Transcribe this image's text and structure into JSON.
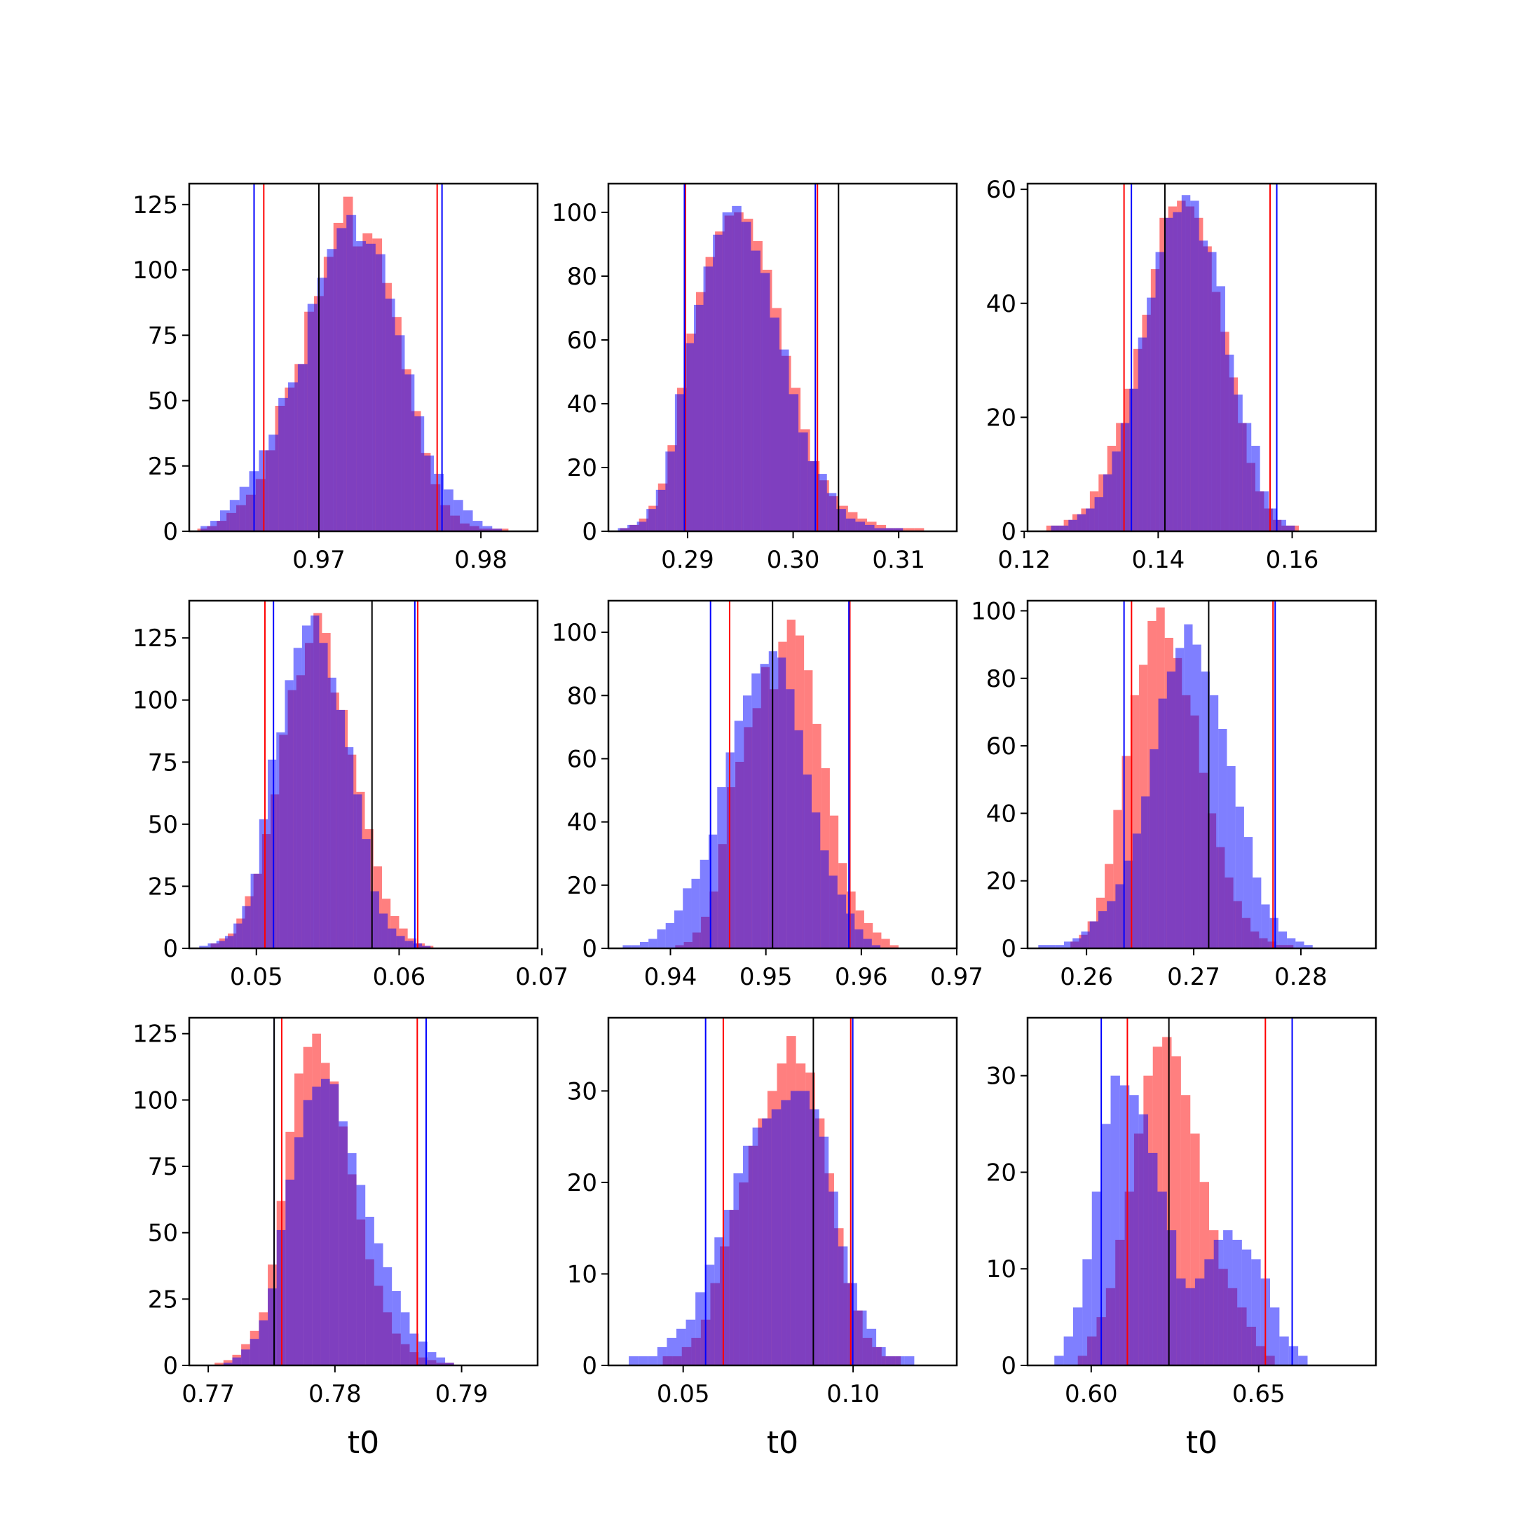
{
  "colors": {
    "red_series": "#ff0000",
    "blue_series": "#0000ff",
    "marker_line": "#000000",
    "overlap_tint": "#7a3cc4"
  },
  "chart_data": [
    {
      "type": "histogram",
      "grid": false,
      "xlim": [
        0.962,
        0.9835
      ],
      "ylim": [
        0,
        133
      ],
      "xticks": [
        {
          "v": 0.97,
          "label": "0.97"
        },
        {
          "v": 0.98,
          "label": "0.98"
        }
      ],
      "yticks": [
        {
          "v": 0,
          "label": "0"
        },
        {
          "v": 25,
          "label": "25"
        },
        {
          "v": 50,
          "label": "50"
        },
        {
          "v": 75,
          "label": "75"
        },
        {
          "v": 100,
          "label": "100"
        },
        {
          "v": 125,
          "label": "125"
        }
      ],
      "xlabel": "",
      "red": {
        "start": 0.9625,
        "width": 0.0006,
        "counts": [
          1,
          2,
          4,
          7,
          10,
          14,
          20,
          31,
          48,
          55,
          64,
          84,
          90,
          105,
          118,
          128,
          109,
          114,
          112,
          95,
          82,
          62,
          46,
          30,
          18,
          10,
          6,
          3,
          2,
          1,
          1,
          1
        ],
        "lines": [
          0.9666,
          0.9773
        ]
      },
      "blue": {
        "start": 0.9627,
        "width": 0.0006,
        "counts": [
          2,
          4,
          8,
          12,
          17,
          23,
          31,
          37,
          51,
          57,
          64,
          87,
          97,
          108,
          116,
          121,
          111,
          110,
          106,
          89,
          75,
          60,
          44,
          29,
          22,
          16,
          12,
          8,
          4,
          2,
          1
        ],
        "lines": [
          0.966,
          0.9776
        ]
      },
      "black_lines": [
        0.97
      ]
    },
    {
      "type": "histogram",
      "grid": false,
      "xlim": [
        0.2825,
        0.3155
      ],
      "ylim": [
        0,
        109
      ],
      "xticks": [
        {
          "v": 0.29,
          "label": "0.29"
        },
        {
          "v": 0.3,
          "label": "0.30"
        },
        {
          "v": 0.31,
          "label": "0.31"
        }
      ],
      "yticks": [
        {
          "v": 0,
          "label": "0"
        },
        {
          "v": 20,
          "label": "20"
        },
        {
          "v": 40,
          "label": "40"
        },
        {
          "v": 60,
          "label": "60"
        },
        {
          "v": 80,
          "label": "80"
        },
        {
          "v": 100,
          "label": "100"
        }
      ],
      "xlabel": "",
      "red": {
        "start": 0.2836,
        "width": 0.0009,
        "counts": [
          1,
          2,
          4,
          8,
          15,
          27,
          45,
          62,
          75,
          86,
          94,
          99,
          100,
          98,
          91,
          82,
          70,
          55,
          45,
          32,
          22,
          16,
          11,
          8,
          6,
          4,
          3,
          2,
          1,
          1,
          1,
          1
        ],
        "lines": [
          0.2898,
          0.3023
        ]
      },
      "blue": {
        "start": 0.2834,
        "width": 0.0009,
        "counts": [
          1,
          2,
          3,
          7,
          13,
          25,
          43,
          59,
          71,
          83,
          93,
          100,
          102,
          97,
          88,
          81,
          67,
          57,
          43,
          31,
          22,
          18,
          12,
          7,
          4,
          3,
          2,
          1,
          1,
          1
        ],
        "lines": [
          0.2897,
          0.3021
        ]
      },
      "black_lines": [
        0.3043
      ]
    },
    {
      "type": "histogram",
      "grid": false,
      "xlim": [
        0.1205,
        0.1725
      ],
      "ylim": [
        0,
        61
      ],
      "xticks": [
        {
          "v": 0.12,
          "label": "0.12"
        },
        {
          "v": 0.14,
          "label": "0.14"
        },
        {
          "v": 0.16,
          "label": "0.16"
        }
      ],
      "yticks": [
        {
          "v": 0,
          "label": "0"
        },
        {
          "v": 20,
          "label": "20"
        },
        {
          "v": 40,
          "label": "40"
        },
        {
          "v": 60,
          "label": "60"
        }
      ],
      "xlabel": "",
      "red": {
        "start": 0.1233,
        "width": 0.0013,
        "counts": [
          1,
          1,
          2,
          3,
          4,
          7,
          10,
          15,
          19,
          25,
          32,
          38,
          46,
          55,
          57,
          58,
          57,
          55,
          50,
          42,
          35,
          27,
          19,
          12,
          7,
          4,
          2,
          1,
          1
        ],
        "lines": [
          0.1349,
          0.1567
        ]
      },
      "blue": {
        "start": 0.124,
        "width": 0.0013,
        "counts": [
          1,
          1,
          2,
          3,
          4,
          6,
          10,
          14,
          19,
          25,
          34,
          41,
          49,
          55,
          56,
          59,
          58,
          51,
          49,
          43,
          31,
          24,
          19,
          15,
          7,
          4,
          2,
          1
        ],
        "lines": [
          0.136,
          0.1577
        ]
      },
      "black_lines": [
        0.141
      ]
    },
    {
      "type": "histogram",
      "grid": false,
      "xlim": [
        0.0453,
        0.0697
      ],
      "ylim": [
        0,
        140
      ],
      "xticks": [
        {
          "v": 0.05,
          "label": "0.05"
        },
        {
          "v": 0.06,
          "label": "0.06"
        },
        {
          "v": 0.07,
          "label": "0.07"
        }
      ],
      "yticks": [
        {
          "v": 0,
          "label": "0"
        },
        {
          "v": 25,
          "label": "25"
        },
        {
          "v": 50,
          "label": "50"
        },
        {
          "v": 75,
          "label": "75"
        },
        {
          "v": 100,
          "label": "100"
        },
        {
          "v": 125,
          "label": "125"
        }
      ],
      "xlabel": "",
      "red": {
        "start": 0.0468,
        "width": 0.0006,
        "counts": [
          2,
          4,
          6,
          12,
          21,
          30,
          46,
          62,
          86,
          104,
          110,
          123,
          135,
          127,
          103,
          96,
          78,
          63,
          48,
          33,
          20,
          13,
          8,
          4,
          2,
          1
        ],
        "lines": [
          0.0506,
          0.0613
        ]
      },
      "blue": {
        "start": 0.046,
        "width": 0.0006,
        "counts": [
          1,
          2,
          3,
          5,
          10,
          17,
          30,
          52,
          76,
          87,
          108,
          121,
          130,
          134,
          123,
          109,
          96,
          81,
          62,
          44,
          23,
          14,
          8,
          5,
          3,
          2,
          1
        ],
        "lines": [
          0.0512,
          0.0611
        ]
      },
      "black_lines": [
        0.0581
      ]
    },
    {
      "type": "histogram",
      "grid": false,
      "xlim": [
        0.9335,
        0.97
      ],
      "ylim": [
        0,
        110
      ],
      "xticks": [
        {
          "v": 0.94,
          "label": "0.94"
        },
        {
          "v": 0.95,
          "label": "0.95"
        },
        {
          "v": 0.96,
          "label": "0.96"
        },
        {
          "v": 0.97,
          "label": "0.97"
        }
      ],
      "yticks": [
        {
          "v": 0,
          "label": "0"
        },
        {
          "v": 20,
          "label": "20"
        },
        {
          "v": 40,
          "label": "40"
        },
        {
          "v": 60,
          "label": "60"
        },
        {
          "v": 80,
          "label": "80"
        },
        {
          "v": 100,
          "label": "100"
        }
      ],
      "xlabel": "",
      "red": {
        "start": 0.9405,
        "width": 0.0009,
        "counts": [
          1,
          2,
          5,
          10,
          18,
          33,
          51,
          59,
          70,
          76,
          89,
          82,
          97,
          104,
          99,
          88,
          71,
          57,
          42,
          27,
          18,
          12,
          8,
          5,
          3,
          1
        ],
        "lines": [
          0.9462,
          0.9588
        ]
      },
      "blue": {
        "start": 0.935,
        "width": 0.0009,
        "counts": [
          1,
          1,
          2,
          3,
          6,
          8,
          12,
          19,
          22,
          28,
          36,
          51,
          62,
          72,
          80,
          87,
          90,
          94,
          92,
          82,
          69,
          55,
          43,
          31,
          23,
          17,
          11,
          6,
          3,
          1
        ],
        "lines": [
          0.9442,
          0.9587
        ]
      },
      "black_lines": [
        0.9507
      ]
    },
    {
      "type": "histogram",
      "grid": false,
      "xlim": [
        0.2545,
        0.287
      ],
      "ylim": [
        0,
        103
      ],
      "xticks": [
        {
          "v": 0.26,
          "label": "0.26"
        },
        {
          "v": 0.27,
          "label": "0.27"
        },
        {
          "v": 0.28,
          "label": "0.28"
        }
      ],
      "yticks": [
        {
          "v": 0,
          "label": "0"
        },
        {
          "v": 20,
          "label": "20"
        },
        {
          "v": 40,
          "label": "40"
        },
        {
          "v": 60,
          "label": "60"
        },
        {
          "v": 80,
          "label": "80"
        },
        {
          "v": 100,
          "label": "100"
        }
      ],
      "xlabel": "",
      "red": {
        "start": 0.2585,
        "width": 0.0008,
        "counts": [
          2,
          4,
          8,
          15,
          25,
          41,
          57,
          75,
          84,
          97,
          101,
          92,
          86,
          75,
          69,
          52,
          40,
          30,
          21,
          14,
          9,
          5,
          3,
          2,
          1,
          1
        ],
        "lines": [
          0.2642,
          0.2774
        ]
      },
      "blue": {
        "start": 0.2555,
        "width": 0.0008,
        "counts": [
          1,
          1,
          1,
          2,
          3,
          5,
          8,
          11,
          14,
          19,
          26,
          34,
          45,
          59,
          74,
          82,
          89,
          96,
          90,
          82,
          75,
          65,
          54,
          42,
          33,
          21,
          13,
          9,
          5,
          3,
          2,
          1
        ],
        "lines": [
          0.2635,
          0.2776
        ]
      },
      "black_lines": [
        0.2714
      ]
    },
    {
      "type": "histogram",
      "grid": false,
      "xlim": [
        0.7685,
        0.796
      ],
      "ylim": [
        0,
        131
      ],
      "xticks": [
        {
          "v": 0.77,
          "label": "0.77"
        },
        {
          "v": 0.78,
          "label": "0.78"
        },
        {
          "v": 0.79,
          "label": "0.79"
        }
      ],
      "yticks": [
        {
          "v": 0,
          "label": "0"
        },
        {
          "v": 25,
          "label": "25"
        },
        {
          "v": 50,
          "label": "50"
        },
        {
          "v": 75,
          "label": "75"
        },
        {
          "v": 100,
          "label": "100"
        },
        {
          "v": 125,
          "label": "125"
        }
      ],
      "xlabel": "t0",
      "red": {
        "start": 0.7705,
        "width": 0.0007,
        "counts": [
          1,
          2,
          4,
          8,
          13,
          20,
          38,
          62,
          88,
          110,
          120,
          125,
          114,
          107,
          90,
          72,
          55,
          40,
          30,
          20,
          12,
          8,
          5,
          3,
          2,
          1,
          1
        ],
        "lines": [
          0.7758,
          0.7865
        ]
      },
      "blue": {
        "start": 0.7712,
        "width": 0.0007,
        "counts": [
          1,
          3,
          6,
          10,
          17,
          29,
          51,
          70,
          86,
          100,
          105,
          108,
          106,
          92,
          80,
          68,
          56,
          46,
          37,
          28,
          20,
          12,
          9,
          5,
          3,
          1
        ],
        "lines": [
          0.7752,
          0.7872
        ]
      },
      "black_lines": [
        0.7752
      ]
    },
    {
      "type": "histogram",
      "grid": false,
      "xlim": [
        0.028,
        0.1305
      ],
      "ylim": [
        0,
        38
      ],
      "xticks": [
        {
          "v": 0.05,
          "label": "0.05"
        },
        {
          "v": 0.1,
          "label": "0.10"
        }
      ],
      "yticks": [
        {
          "v": 0,
          "label": "0"
        },
        {
          "v": 10,
          "label": "10"
        },
        {
          "v": 20,
          "label": "20"
        },
        {
          "v": 30,
          "label": "30"
        }
      ],
      "xlabel": "t0",
      "red": {
        "start": 0.044,
        "width": 0.0028,
        "counts": [
          1,
          1,
          2,
          3,
          5,
          9,
          13,
          17,
          20,
          24,
          27,
          30,
          33,
          36,
          33,
          32,
          27,
          21,
          15,
          9,
          6,
          3,
          2,
          1,
          1
        ],
        "lines": [
          0.0618,
          0.0993
        ]
      },
      "blue": {
        "start": 0.034,
        "width": 0.0028,
        "counts": [
          1,
          1,
          1,
          2,
          3,
          4,
          5,
          8,
          11,
          14,
          17,
          21,
          24,
          26,
          27,
          28,
          29,
          30,
          30,
          28,
          25,
          19,
          13,
          9,
          6,
          4,
          2,
          1,
          1,
          1
        ],
        "lines": [
          0.0566,
          0.0999
        ]
      },
      "black_lines": [
        0.0883
      ]
    },
    {
      "type": "histogram",
      "grid": false,
      "xlim": [
        0.581,
        0.685
      ],
      "ylim": [
        0,
        36
      ],
      "xticks": [
        {
          "v": 0.6,
          "label": "0.60"
        },
        {
          "v": 0.65,
          "label": "0.65"
        }
      ],
      "yticks": [
        {
          "v": 0,
          "label": "0"
        },
        {
          "v": 10,
          "label": "10"
        },
        {
          "v": 20,
          "label": "20"
        },
        {
          "v": 30,
          "label": "30"
        }
      ],
      "xlabel": "t0",
      "red": {
        "start": 0.596,
        "width": 0.0028,
        "counts": [
          1,
          3,
          5,
          8,
          13,
          18,
          24,
          30,
          33,
          34,
          32,
          28,
          24,
          19,
          14,
          10,
          8,
          6,
          4,
          2,
          1
        ],
        "lines": [
          0.6108,
          0.652
        ]
      },
      "blue": {
        "start": 0.589,
        "width": 0.0028,
        "counts": [
          1,
          3,
          6,
          11,
          18,
          25,
          30,
          29,
          28,
          26,
          22,
          18,
          14,
          9,
          8,
          9,
          11,
          13,
          14,
          13,
          12,
          11,
          9,
          6,
          3,
          2,
          1
        ],
        "lines": [
          0.603,
          0.66
        ]
      },
      "black_lines": [
        0.6232
      ]
    }
  ]
}
